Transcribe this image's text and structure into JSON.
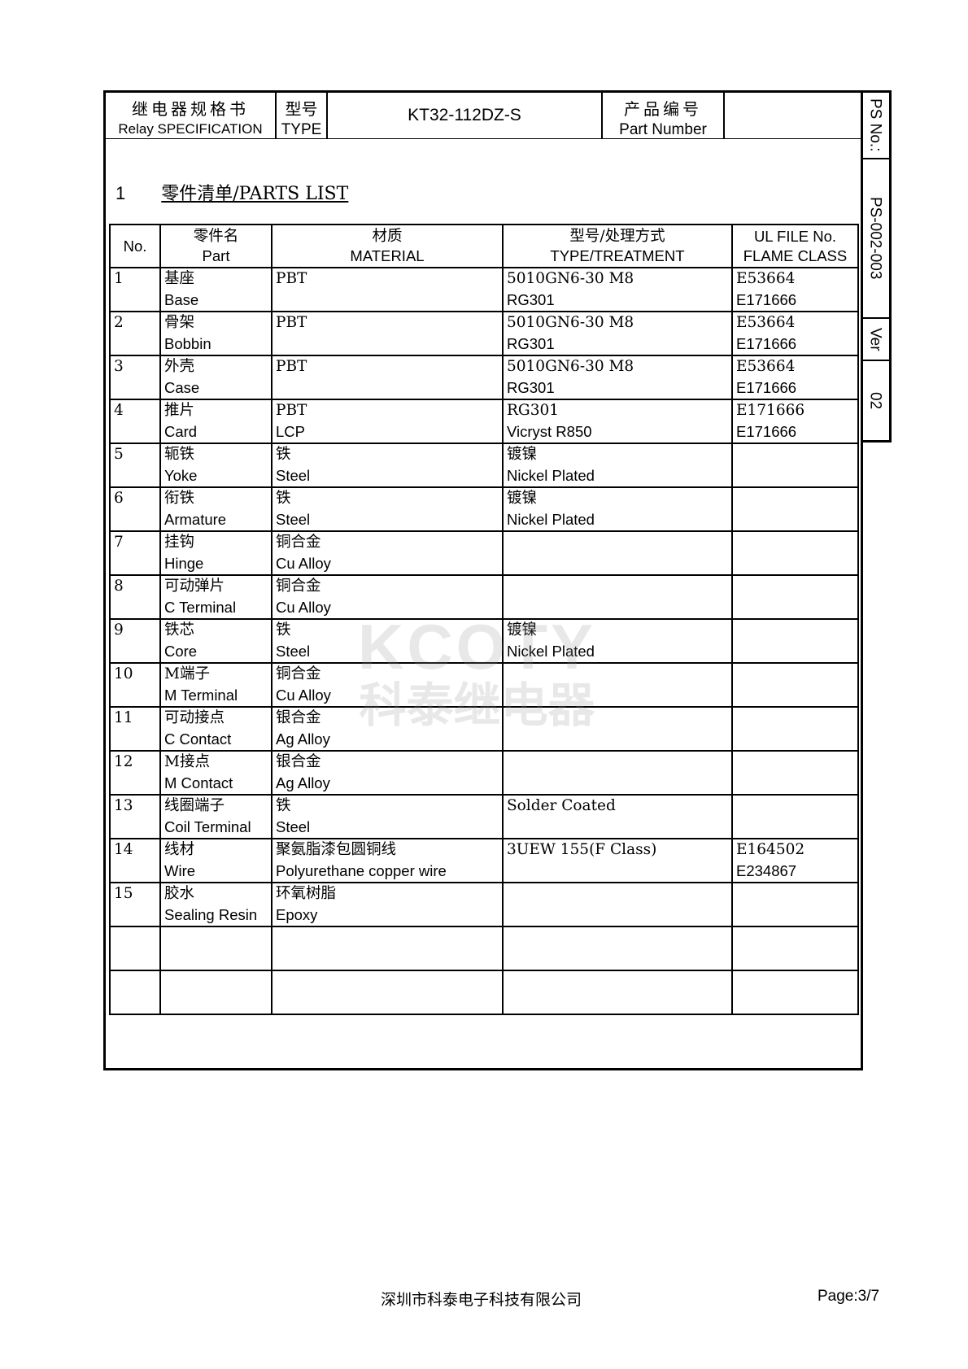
{
  "header": {
    "title_cn": "继电器规格书",
    "title_en": "Relay SPECIFICATION",
    "type_cn": "型号",
    "type_en": "TYPE",
    "model": "KT32-112DZ-S",
    "part_cn": "产品编号",
    "part_en": "Part Number",
    "part_value": ""
  },
  "side": {
    "ps_label": "PS No.:",
    "ps_value": "PS-002-003",
    "ver_label": "Ver",
    "ver_value": "02"
  },
  "section": {
    "number": "1",
    "title": "零件清单/PARTS LIST"
  },
  "table": {
    "headers": [
      {
        "cn": "",
        "en": "No."
      },
      {
        "cn": "零件名",
        "en": "Part"
      },
      {
        "cn": "材质",
        "en": "MATERIAL"
      },
      {
        "cn": "型号/处理方式",
        "en": "TYPE/TREATMENT"
      },
      {
        "cn": "UL FILE No.",
        "en": "FLAME CLASS"
      }
    ],
    "rows": [
      {
        "no": "1",
        "part": [
          "基座",
          "Base"
        ],
        "material": [
          "PBT",
          ""
        ],
        "type": [
          "5010GN6-30 M8",
          "RG301"
        ],
        "ul": [
          "E53664",
          "E171666"
        ]
      },
      {
        "no": "2",
        "part": [
          "骨架",
          "Bobbin"
        ],
        "material": [
          "PBT",
          ""
        ],
        "type": [
          "5010GN6-30 M8",
          "RG301"
        ],
        "ul": [
          "E53664",
          "E171666"
        ]
      },
      {
        "no": "3",
        "part": [
          "外壳",
          "Case"
        ],
        "material": [
          "PBT",
          ""
        ],
        "type": [
          "5010GN6-30 M8",
          "RG301"
        ],
        "ul": [
          "E53664",
          "E171666"
        ]
      },
      {
        "no": "4",
        "part": [
          "推片",
          "Card"
        ],
        "material": [
          "PBT",
          "LCP"
        ],
        "type": [
          "RG301",
          "Vicryst R850"
        ],
        "ul": [
          "E171666",
          "E171666"
        ]
      },
      {
        "no": "5",
        "part": [
          "轭铁",
          "Yoke"
        ],
        "material": [
          "铁",
          "Steel"
        ],
        "type": [
          "镀镍",
          "Nickel Plated"
        ],
        "ul": [
          "",
          ""
        ]
      },
      {
        "no": "6",
        "part": [
          "衔铁",
          "Armature"
        ],
        "material": [
          "铁",
          "Steel"
        ],
        "type": [
          "镀镍",
          "Nickel Plated"
        ],
        "ul": [
          "",
          ""
        ]
      },
      {
        "no": "7",
        "part": [
          "挂钩",
          "Hinge"
        ],
        "material": [
          "铜合金",
          "Cu Alloy"
        ],
        "type": [
          "",
          ""
        ],
        "ul": [
          "",
          ""
        ]
      },
      {
        "no": "8",
        "part": [
          "可动弹片",
          "C Terminal"
        ],
        "material": [
          "铜合金",
          "Cu Alloy"
        ],
        "type": [
          "",
          ""
        ],
        "ul": [
          "",
          ""
        ]
      },
      {
        "no": "9",
        "part": [
          "铁芯",
          "Core"
        ],
        "material": [
          "铁",
          "Steel"
        ],
        "type": [
          "镀镍",
          "Nickel Plated"
        ],
        "ul": [
          "",
          ""
        ]
      },
      {
        "no": "10",
        "part": [
          "M端子",
          "M Terminal"
        ],
        "material": [
          "铜合金",
          "Cu Alloy"
        ],
        "type": [
          "",
          ""
        ],
        "ul": [
          "",
          ""
        ]
      },
      {
        "no": "11",
        "part": [
          "可动接点",
          "C Contact"
        ],
        "material": [
          "银合金",
          "Ag Alloy"
        ],
        "type": [
          "",
          ""
        ],
        "ul": [
          "",
          ""
        ]
      },
      {
        "no": "12",
        "part": [
          "M接点",
          "M Contact"
        ],
        "material": [
          "银合金",
          "Ag Alloy"
        ],
        "type": [
          "",
          ""
        ],
        "ul": [
          "",
          ""
        ]
      },
      {
        "no": "13",
        "part": [
          "线圈端子",
          "Coil Terminal"
        ],
        "material": [
          "铁",
          "Steel"
        ],
        "type": [
          "Solder Coated",
          ""
        ],
        "ul": [
          "",
          ""
        ]
      },
      {
        "no": "14",
        "part": [
          "线材",
          "Wire"
        ],
        "material": [
          "聚氨脂漆包圆铜线",
          "Polyurethane copper wire"
        ],
        "type": [
          "3UEW 155(F Class)",
          ""
        ],
        "ul": [
          "E164502",
          "E234867"
        ]
      },
      {
        "no": "15",
        "part": [
          "胶水",
          "Sealing Resin"
        ],
        "material": [
          "环氧树脂",
          "Epoxy"
        ],
        "type": [
          "",
          ""
        ],
        "ul": [
          "",
          ""
        ]
      },
      {
        "no": "",
        "part": [
          "",
          ""
        ],
        "material": [
          "",
          ""
        ],
        "type": [
          "",
          ""
        ],
        "ul": [
          "",
          ""
        ]
      },
      {
        "no": "",
        "part": [
          "",
          ""
        ],
        "material": [
          "",
          ""
        ],
        "type": [
          "",
          ""
        ],
        "ul": [
          "",
          ""
        ]
      }
    ]
  },
  "watermark": {
    "line1": "KCOTY",
    "line2": "科泰继电器"
  },
  "footer": {
    "company": "深圳市科泰电子科技有限公司",
    "page": "Page:3/7"
  }
}
